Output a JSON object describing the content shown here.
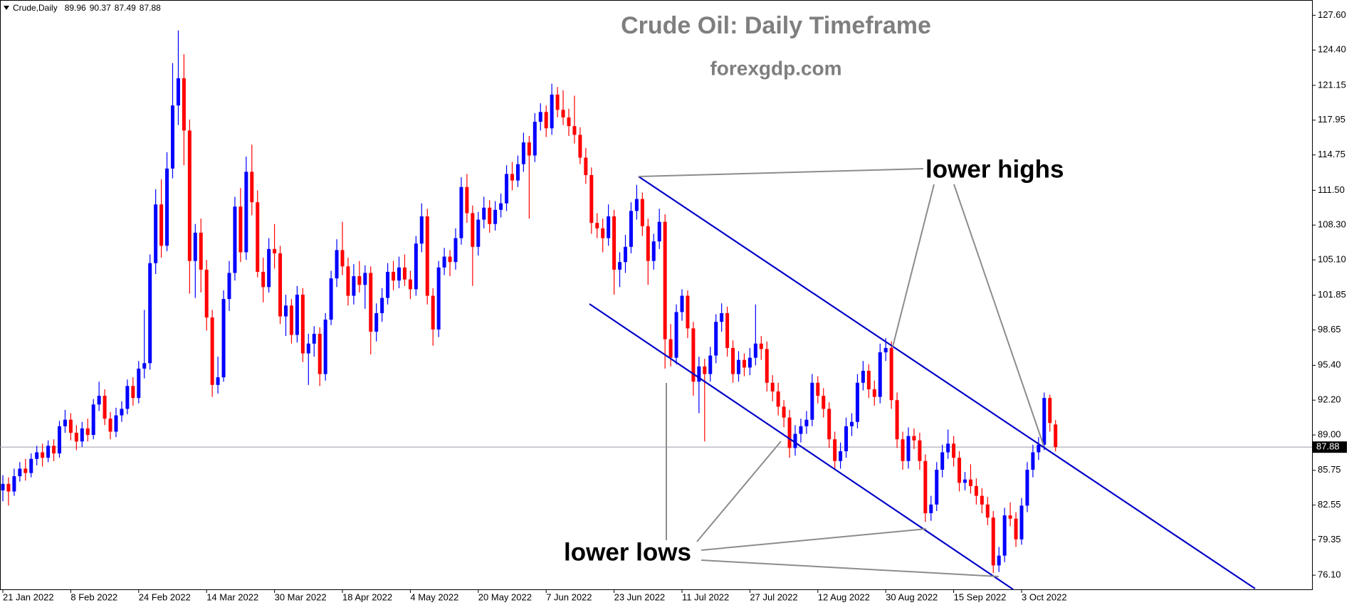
{
  "chart_data": {
    "type": "candlestick",
    "symbol": "Crude,Daily",
    "title": "Crude Oil: Daily Timeframe",
    "subtitle": "forexgdp.com",
    "annotations": [
      "lower highs",
      "lower lows"
    ],
    "up_color": "#0000ff",
    "down_color": "#ff0000",
    "ylim": [
      74.8,
      129.0
    ],
    "yticks": [
      {
        "value": 127.6,
        "label": "127.60"
      },
      {
        "value": 124.4,
        "label": "124.40"
      },
      121.15,
      117.95,
      114.75,
      {
        "value": 111.5,
        "label": "111.50"
      },
      {
        "value": 108.3,
        "label": "108.30"
      },
      {
        "value": 105.1,
        "label": "105.10"
      },
      101.85,
      98.65,
      {
        "value": 95.4,
        "label": "95.40"
      },
      {
        "value": 92.2,
        "label": "92.20"
      },
      {
        "value": 89,
        "label": "89.00"
      },
      85.75,
      82.55,
      79.35,
      {
        "value": 76.1,
        "label": "76.10"
      }
    ],
    "categories": [
      "21 Jan 2022",
      null,
      null,
      null,
      null,
      null,
      null,
      null,
      null,
      null,
      null,
      null,
      "8 Feb 2022",
      null,
      null,
      null,
      null,
      null,
      null,
      null,
      null,
      null,
      null,
      null,
      "24 Feb 2022",
      null,
      null,
      null,
      null,
      null,
      null,
      null,
      null,
      null,
      null,
      null,
      "14 Mar 2022",
      null,
      null,
      null,
      null,
      null,
      null,
      null,
      null,
      null,
      null,
      null,
      "30 Mar 2022",
      null,
      null,
      null,
      null,
      null,
      null,
      null,
      null,
      null,
      null,
      null,
      "18 Apr 2022",
      null,
      null,
      null,
      null,
      null,
      null,
      null,
      null,
      null,
      null,
      null,
      "4 May 2022",
      null,
      null,
      null,
      null,
      null,
      null,
      null,
      null,
      null,
      null,
      null,
      "20 May 2022",
      null,
      null,
      null,
      null,
      null,
      null,
      null,
      null,
      null,
      null,
      null,
      "7 Jun 2022",
      null,
      null,
      null,
      null,
      null,
      null,
      null,
      null,
      null,
      null,
      null,
      "23 Jun 2022",
      null,
      null,
      null,
      null,
      null,
      null,
      null,
      null,
      null,
      null,
      null,
      "11 Jul 2022",
      null,
      null,
      null,
      null,
      null,
      null,
      null,
      null,
      null,
      null,
      null,
      "27 Jul 2022",
      null,
      null,
      null,
      null,
      null,
      null,
      null,
      null,
      null,
      null,
      null,
      "12 Aug 2022",
      null,
      null,
      null,
      null,
      null,
      null,
      null,
      null,
      null,
      null,
      null,
      "30 Aug 2022",
      null,
      null,
      null,
      null,
      null,
      null,
      null,
      null,
      null,
      null,
      null,
      "15 Sep 2022",
      null,
      null,
      null,
      null,
      null,
      null,
      null,
      null,
      null,
      null,
      null,
      "3 Oct 2022",
      null,
      null,
      null,
      null,
      null,
      null
    ],
    "candles": [
      [
        83.9,
        85.3,
        82.9,
        84.5
      ],
      [
        84.5,
        85.1,
        82.5,
        83.8
      ],
      [
        83.8,
        85.9,
        83.4,
        85.2
      ],
      [
        85.2,
        86.5,
        84.7,
        85.9
      ],
      [
        85.9,
        86.8,
        84.8,
        85.5
      ],
      [
        85.5,
        87.3,
        85.1,
        86.8
      ],
      [
        86.8,
        88.0,
        86.2,
        87.4
      ],
      [
        87.4,
        88.2,
        86.1,
        86.9
      ],
      [
        86.9,
        88.5,
        86.5,
        88.0
      ],
      [
        88.0,
        88.6,
        86.6,
        87.3
      ],
      [
        87.3,
        90.3,
        86.9,
        89.8
      ],
      [
        89.8,
        91.3,
        89.2,
        90.4
      ],
      [
        90.4,
        91.0,
        88.5,
        89.2
      ],
      [
        89.2,
        89.9,
        87.6,
        88.4
      ],
      [
        88.4,
        90.2,
        87.9,
        89.6
      ],
      [
        89.6,
        90.5,
        88.4,
        89.0
      ],
      [
        89.0,
        92.3,
        88.6,
        91.8
      ],
      [
        91.8,
        93.9,
        91.2,
        92.6
      ],
      [
        92.6,
        93.2,
        89.9,
        90.5
      ],
      [
        90.5,
        91.1,
        88.6,
        89.3
      ],
      [
        89.3,
        91.5,
        88.8,
        90.8
      ],
      [
        90.8,
        92.1,
        90.2,
        91.4
      ],
      [
        91.4,
        94.1,
        90.9,
        93.5
      ],
      [
        93.5,
        94.3,
        91.7,
        92.4
      ],
      [
        92.4,
        95.8,
        91.9,
        95.1
      ],
      [
        95.1,
        100.5,
        94.2,
        95.6
      ],
      [
        95.6,
        105.6,
        95.0,
        104.8
      ],
      [
        104.8,
        111.6,
        103.8,
        110.2
      ],
      [
        110.2,
        112.5,
        105.3,
        106.4
      ],
      [
        106.4,
        115.0,
        105.9,
        113.5
      ],
      [
        113.5,
        123.2,
        112.6,
        119.3
      ],
      [
        119.3,
        126.2,
        117.5,
        121.8
      ],
      [
        121.8,
        124.0,
        113.8,
        117.0
      ],
      [
        117.0,
        118.0,
        102.0,
        105.0
      ],
      [
        105.0,
        108.4,
        101.6,
        107.6
      ],
      [
        107.6,
        108.9,
        102.1,
        104.2
      ],
      [
        104.2,
        105.1,
        98.6,
        99.8
      ],
      [
        99.8,
        100.5,
        92.5,
        93.6
      ],
      [
        93.6,
        96.2,
        92.8,
        94.3
      ],
      [
        94.3,
        102.3,
        93.9,
        101.5
      ],
      [
        101.5,
        105.0,
        100.4,
        103.9
      ],
      [
        103.9,
        110.9,
        103.2,
        110.0
      ],
      [
        110.0,
        111.7,
        104.9,
        105.8
      ],
      [
        105.8,
        114.6,
        105.1,
        113.2
      ],
      [
        113.2,
        115.7,
        109.2,
        110.4
      ],
      [
        110.4,
        111.5,
        103.5,
        104.0
      ],
      [
        104.0,
        105.3,
        101.2,
        102.6
      ],
      [
        102.6,
        107.1,
        102.1,
        106.1
      ],
      [
        106.1,
        108.4,
        104.3,
        105.7
      ],
      [
        105.7,
        106.4,
        99.2,
        99.9
      ],
      [
        99.9,
        101.9,
        98.1,
        100.9
      ],
      [
        100.9,
        101.5,
        97.4,
        98.2
      ],
      [
        98.2,
        102.7,
        97.5,
        101.9
      ],
      [
        101.9,
        102.5,
        95.7,
        96.5
      ],
      [
        96.5,
        98.3,
        93.6,
        97.4
      ],
      [
        97.4,
        99.0,
        96.2,
        98.3
      ],
      [
        98.3,
        98.9,
        93.5,
        94.6
      ],
      [
        94.6,
        100.2,
        94.0,
        99.6
      ],
      [
        99.6,
        104.1,
        99.1,
        103.4
      ],
      [
        103.4,
        107.0,
        102.6,
        106.0
      ],
      [
        106.0,
        108.6,
        103.7,
        104.5
      ],
      [
        104.5,
        105.3,
        100.9,
        101.8
      ],
      [
        101.8,
        104.7,
        101.0,
        103.6
      ],
      [
        103.6,
        105.0,
        102.1,
        102.8
      ],
      [
        102.8,
        104.6,
        100.6,
        103.9
      ],
      [
        103.9,
        104.5,
        96.4,
        98.5
      ],
      [
        98.5,
        101.1,
        97.6,
        100.2
      ],
      [
        100.2,
        102.5,
        99.4,
        101.6
      ],
      [
        101.6,
        104.8,
        101.0,
        104.0
      ],
      [
        104.0,
        105.0,
        102.3,
        103.2
      ],
      [
        103.2,
        105.4,
        102.5,
        104.4
      ],
      [
        104.4,
        105.6,
        102.7,
        103.3
      ],
      [
        103.3,
        104.1,
        101.5,
        102.4
      ],
      [
        102.4,
        107.3,
        101.8,
        106.6
      ],
      [
        106.6,
        110.3,
        105.8,
        109.1
      ],
      [
        109.1,
        109.8,
        101.0,
        101.8
      ],
      [
        101.8,
        102.5,
        97.2,
        98.7
      ],
      [
        98.7,
        105.0,
        98.0,
        104.4
      ],
      [
        104.4,
        106.2,
        103.7,
        105.4
      ],
      [
        105.4,
        106.0,
        103.6,
        104.9
      ],
      [
        104.9,
        108.0,
        104.2,
        107.1
      ],
      [
        107.1,
        112.7,
        106.5,
        111.8
      ],
      [
        111.8,
        113.0,
        108.5,
        109.4
      ],
      [
        109.4,
        110.1,
        102.7,
        106.3
      ],
      [
        106.3,
        109.5,
        105.5,
        108.8
      ],
      [
        108.8,
        110.9,
        108.0,
        109.9
      ],
      [
        109.9,
        110.6,
        107.6,
        108.4
      ],
      [
        108.4,
        110.5,
        107.8,
        109.7
      ],
      [
        109.7,
        111.2,
        109.0,
        110.3
      ],
      [
        110.3,
        113.8,
        109.6,
        113.0
      ],
      [
        113.0,
        114.1,
        111.5,
        112.4
      ],
      [
        112.4,
        114.7,
        111.8,
        113.9
      ],
      [
        113.9,
        116.8,
        113.2,
        115.9
      ],
      [
        115.9,
        116.5,
        108.9,
        114.7
      ],
      [
        114.7,
        118.6,
        114.1,
        117.8
      ],
      [
        117.8,
        119.5,
        117.0,
        118.7
      ],
      [
        118.7,
        119.3,
        116.4,
        117.2
      ],
      [
        117.2,
        121.3,
        116.6,
        120.3
      ],
      [
        120.3,
        121.0,
        118.2,
        118.9
      ],
      [
        118.9,
        120.7,
        117.5,
        118.2
      ],
      [
        118.2,
        119.0,
        116.5,
        117.4
      ],
      [
        117.4,
        120.2,
        115.8,
        116.6
      ],
      [
        116.6,
        117.3,
        113.9,
        114.5
      ],
      [
        114.5,
        115.4,
        112.1,
        112.9
      ],
      [
        112.9,
        113.6,
        107.5,
        108.5
      ],
      [
        108.5,
        109.4,
        107.1,
        108.0
      ],
      [
        108.0,
        108.9,
        105.8,
        107.1
      ],
      [
        107.1,
        110.2,
        106.4,
        109.1
      ],
      [
        109.1,
        109.7,
        101.9,
        104.2
      ],
      [
        104.2,
        105.8,
        102.6,
        104.9
      ],
      [
        104.9,
        107.4,
        103.9,
        106.3
      ],
      [
        106.3,
        110.4,
        105.7,
        109.6
      ],
      [
        109.6,
        112.0,
        108.8,
        110.7
      ],
      [
        110.7,
        111.3,
        107.3,
        108.2
      ],
      [
        108.2,
        108.9,
        102.8,
        105.0
      ],
      [
        105.0,
        107.5,
        104.2,
        106.8
      ],
      [
        106.8,
        109.8,
        106.1,
        108.6
      ],
      [
        108.6,
        109.3,
        95.1,
        97.8
      ],
      [
        97.8,
        99.2,
        95.3,
        96.1
      ],
      [
        96.1,
        101.0,
        95.5,
        100.3
      ],
      [
        100.3,
        102.4,
        99.5,
        101.8
      ],
      [
        101.8,
        102.3,
        97.9,
        98.8
      ],
      [
        98.8,
        99.4,
        92.6,
        93.9
      ],
      [
        93.9,
        96.2,
        91.0,
        95.3
      ],
      [
        95.3,
        96.0,
        88.4,
        94.6
      ],
      [
        94.6,
        97.1,
        93.9,
        96.3
      ],
      [
        96.3,
        100.1,
        95.6,
        99.4
      ],
      [
        99.4,
        101.1,
        98.5,
        100.2
      ],
      [
        100.2,
        100.8,
        96.2,
        97.0
      ],
      [
        97.0,
        97.7,
        93.8,
        94.6
      ],
      [
        94.6,
        96.7,
        93.9,
        95.9
      ],
      [
        95.9,
        96.5,
        94.4,
        95.2
      ],
      [
        95.2,
        97.0,
        94.5,
        96.1
      ],
      [
        96.1,
        101.0,
        95.4,
        97.4
      ],
      [
        97.4,
        98.1,
        95.9,
        96.9
      ],
      [
        96.9,
        97.6,
        93.0,
        93.8
      ],
      [
        93.8,
        94.5,
        92.1,
        93.0
      ],
      [
        93.0,
        93.8,
        90.8,
        91.6
      ],
      [
        91.6,
        92.2,
        89.7,
        90.6
      ],
      [
        90.6,
        91.3,
        86.9,
        87.8
      ],
      [
        87.8,
        89.9,
        87.1,
        89.1
      ],
      [
        89.1,
        90.5,
        88.3,
        89.8
      ],
      [
        89.8,
        91.2,
        89.1,
        90.4
      ],
      [
        90.4,
        94.6,
        89.8,
        93.8
      ],
      [
        93.8,
        94.4,
        91.9,
        92.6
      ],
      [
        92.6,
        93.3,
        90.6,
        91.4
      ],
      [
        91.4,
        92.0,
        87.8,
        88.6
      ],
      [
        88.6,
        89.3,
        85.8,
        86.6
      ],
      [
        86.6,
        88.3,
        85.9,
        87.5
      ],
      [
        87.5,
        90.6,
        86.9,
        89.8
      ],
      [
        89.8,
        91.0,
        88.9,
        90.2
      ],
      [
        90.2,
        94.6,
        89.6,
        93.8
      ],
      [
        93.8,
        95.8,
        93.1,
        94.9
      ],
      [
        94.9,
        95.5,
        92.4,
        93.2
      ],
      [
        93.2,
        94.0,
        91.7,
        92.5
      ],
      [
        92.5,
        97.4,
        91.9,
        96.6
      ],
      [
        96.6,
        97.9,
        95.8,
        97.0
      ],
      [
        97.0,
        97.6,
        91.4,
        92.2
      ],
      [
        92.2,
        92.9,
        87.8,
        88.6
      ],
      [
        88.6,
        89.3,
        85.8,
        86.6
      ],
      [
        86.6,
        89.7,
        85.9,
        88.9
      ],
      [
        88.9,
        89.6,
        87.7,
        88.5
      ],
      [
        88.5,
        89.2,
        85.8,
        86.6
      ],
      [
        86.6,
        87.2,
        81.0,
        81.8
      ],
      [
        81.8,
        83.4,
        81.1,
        82.6
      ],
      [
        82.6,
        86.5,
        82.0,
        85.8
      ],
      [
        85.8,
        88.1,
        85.1,
        87.4
      ],
      [
        87.4,
        89.5,
        86.8,
        88.2
      ],
      [
        88.2,
        88.9,
        86.1,
        86.9
      ],
      [
        86.9,
        87.5,
        83.8,
        84.6
      ],
      [
        84.6,
        85.6,
        83.9,
        84.9
      ],
      [
        84.9,
        86.3,
        83.6,
        84.3
      ],
      [
        84.3,
        85.0,
        82.6,
        83.4
      ],
      [
        83.4,
        84.1,
        81.8,
        82.6
      ],
      [
        82.6,
        83.3,
        80.7,
        81.4
      ],
      [
        81.4,
        82.0,
        76.3,
        77.0
      ],
      [
        77.0,
        78.7,
        76.4,
        77.9
      ],
      [
        77.9,
        82.3,
        77.3,
        81.6
      ],
      [
        81.6,
        82.8,
        80.6,
        81.3
      ],
      [
        81.3,
        81.9,
        78.7,
        79.4
      ],
      [
        79.4,
        83.2,
        78.9,
        82.5
      ],
      [
        82.5,
        86.5,
        81.9,
        85.8
      ],
      [
        85.8,
        88.1,
        85.1,
        87.4
      ],
      [
        87.4,
        88.8,
        86.7,
        88.1
      ],
      [
        88.1,
        92.9,
        87.6,
        92.4
      ],
      [
        92.4,
        92.7,
        89.3,
        90.1
      ],
      [
        89.96,
        90.37,
        87.49,
        87.88
      ]
    ]
  }
}
